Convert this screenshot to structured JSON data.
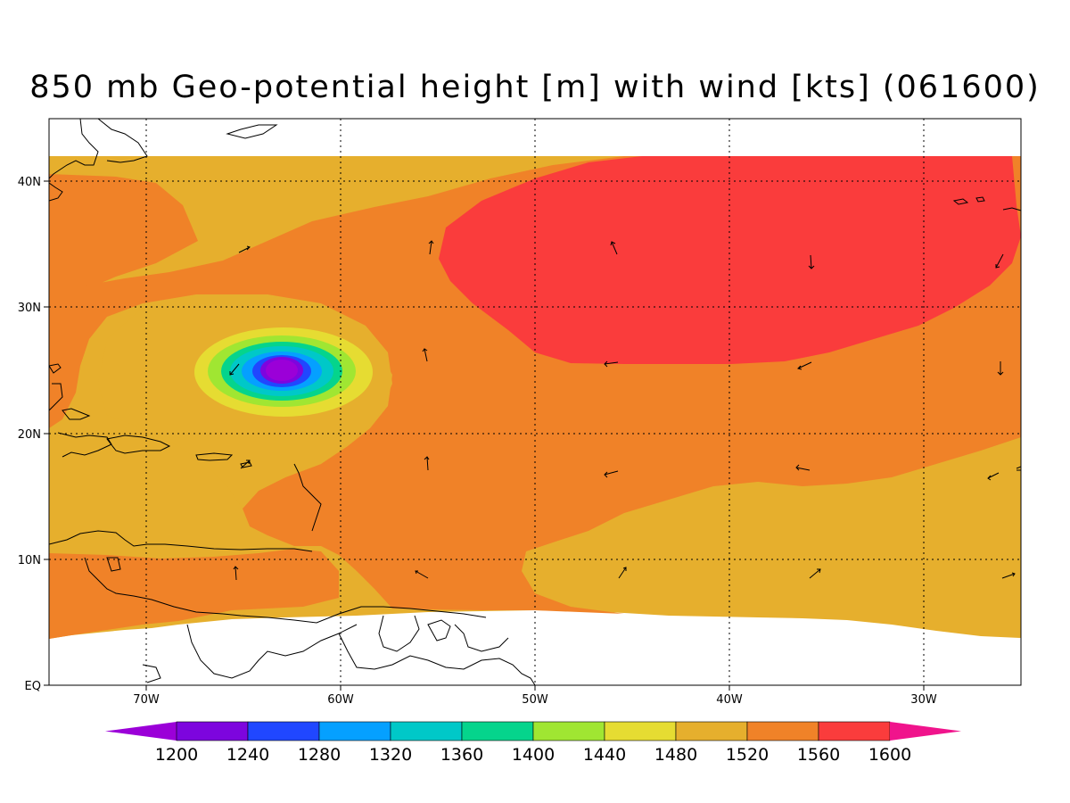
{
  "title": "850 mb Geo-potential height [m] with wind [kts] (061600)",
  "map": {
    "lon_labels": [
      "70W",
      "60W",
      "50W",
      "40W",
      "30W"
    ],
    "lat_labels": [
      "40N",
      "30N",
      "20N",
      "10N",
      "EQ"
    ]
  },
  "colorbar": {
    "labels": [
      "1200",
      "1240",
      "1280",
      "1320",
      "1360",
      "1400",
      "1440",
      "1480",
      "1520",
      "1560",
      "1600"
    ],
    "colors": [
      "#9b00d8",
      "#7d05de",
      "#2047ff",
      "#05a0ff",
      "#00c8c8",
      "#05d48c",
      "#a0e632",
      "#e6dc32",
      "#e6af2d",
      "#f08228",
      "#fa3c3c",
      "#f0148c"
    ]
  },
  "fill_colors": {
    "h1480": "#e6dc32",
    "h1520": "#e6af2d",
    "h1560": "#f08228",
    "h1600": "#fa3c3c"
  }
}
